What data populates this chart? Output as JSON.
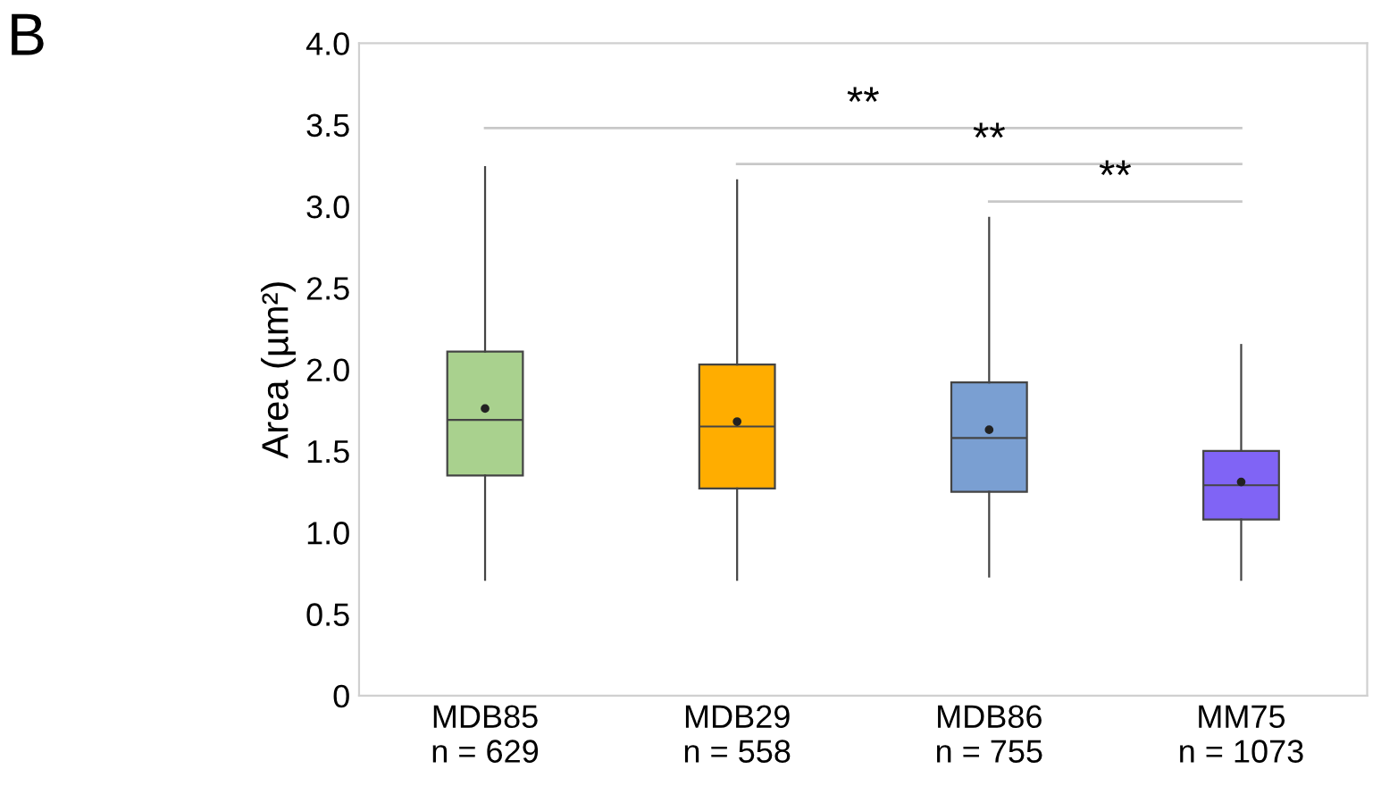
{
  "chart_data": {
    "type": "box",
    "ylabel": "Area (µm²)",
    "categories": [
      "MDB85\nn = 629",
      "MDB29\nn = 558",
      "MDB86\nn = 755",
      "MM75\nn = 1073"
    ],
    "colors": [
      "#a9d18e",
      "#ffad00",
      "#7a9fd2",
      "#8064f5"
    ],
    "boxes": [
      {
        "low": 0.71,
        "q1": 1.35,
        "median": 1.69,
        "q3": 2.11,
        "high": 3.24,
        "mean": 1.76
      },
      {
        "low": 0.71,
        "q1": 1.27,
        "median": 1.65,
        "q3": 2.03,
        "high": 3.16,
        "mean": 1.68
      },
      {
        "low": 0.73,
        "q1": 1.25,
        "median": 1.58,
        "q3": 1.92,
        "high": 2.93,
        "mean": 1.63
      },
      {
        "low": 0.71,
        "q1": 1.08,
        "median": 1.29,
        "q3": 1.5,
        "high": 2.15,
        "mean": 1.31
      }
    ],
    "ylim": [
      0,
      4.0
    ],
    "yticks": [
      0,
      0.5,
      {
        "value": 1,
        "label": "1.0"
      },
      1.5,
      {
        "value": 2,
        "label": "2.0"
      },
      2.5,
      {
        "value": 3,
        "label": "3.0"
      },
      3.5,
      {
        "value": 4,
        "label": "4.0"
      }
    ],
    "grid": false,
    "ref_lines": [
      {
        "axis": "y",
        "value": 3.48,
        "label": "**",
        "color": "#c8c8c8"
      },
      {
        "axis": "y",
        "value": 3.26,
        "label": "**",
        "color": "#c8c8c8"
      },
      {
        "axis": "y",
        "value": 3.03,
        "label": "**",
        "color": "#c8c8c8"
      }
    ],
    "annotations": [
      "B"
    ]
  }
}
